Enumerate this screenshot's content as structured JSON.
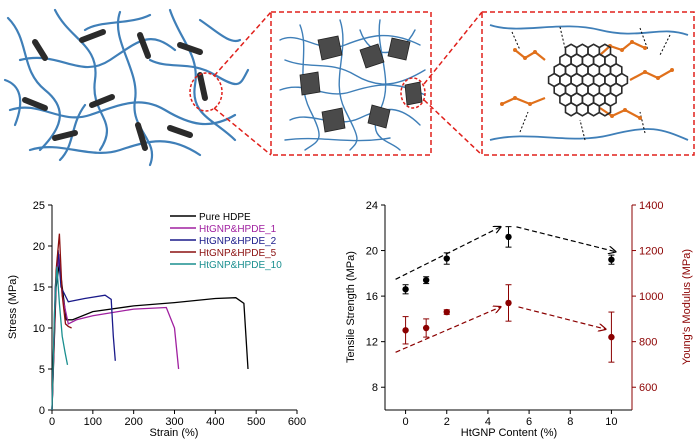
{
  "colors": {
    "polymer": "#3f7fb8",
    "sheet": "#2b2b2b",
    "zoom_box": "#e0201b",
    "chain": "#e0701b",
    "hdpe": "#000000",
    "htgnp1": "#a020a0",
    "htgnp2": "#1a1a8a",
    "htgnp5": "#8b1010",
    "htgnp10": "#1a8f8f",
    "modulus_axis": "#8b0000"
  },
  "schematic": {
    "panels": [
      "network-overview",
      "network-zoom",
      "graphene-sheet-zoom"
    ]
  },
  "chart_data": [
    {
      "type": "line",
      "xlabel": "Strain (%)",
      "ylabel": "Stress (MPa)",
      "xlim": [
        0,
        600
      ],
      "ylim": [
        0,
        25
      ],
      "xticks": [
        "0",
        "100",
        "200",
        "300",
        "400",
        "500",
        "600"
      ],
      "yticks": [
        "0",
        "5",
        "10",
        "15",
        "20",
        "25"
      ],
      "legend_position": "top-right",
      "series": [
        {
          "name": "Pure HDPE",
          "color": "#000000",
          "x": [
            0,
            10,
            18,
            25,
            35,
            50,
            100,
            200,
            300,
            400,
            450,
            470,
            480
          ],
          "y": [
            0,
            15,
            18,
            15,
            11,
            11,
            12,
            12.7,
            13.1,
            13.6,
            13.7,
            13,
            5
          ]
        },
        {
          "name": "HtGNP&HPDE_1",
          "color": "#a020a0",
          "x": [
            0,
            10,
            17,
            25,
            40,
            60,
            100,
            200,
            280,
            300,
            310
          ],
          "y": [
            0,
            16,
            19,
            14,
            10.5,
            11,
            11.5,
            12.3,
            12.5,
            10,
            5
          ]
        },
        {
          "name": "HtGNP&HPDE_2",
          "color": "#1a1a8a",
          "x": [
            0,
            8,
            15,
            22,
            40,
            80,
            130,
            145,
            150,
            155
          ],
          "y": [
            0,
            15,
            19.5,
            15,
            13.2,
            13.6,
            14,
            13.5,
            9,
            6
          ]
        },
        {
          "name": "HtGNP&HPDE_5",
          "color": "#8b1010",
          "x": [
            0,
            10,
            18,
            25,
            33,
            40,
            48
          ],
          "y": [
            0,
            17,
            21.5,
            14,
            10.5,
            10.2,
            10
          ]
        },
        {
          "name": "HtGNP&HPDE_10",
          "color": "#1a8f8f",
          "x": [
            0,
            6,
            12,
            18,
            25,
            32,
            38
          ],
          "y": [
            0,
            12,
            17.5,
            13,
            9,
            7,
            5.5
          ]
        }
      ]
    },
    {
      "type": "scatter",
      "xlabel": "HtGNP Content (%)",
      "ylabel": "Tensile Strength (MPa)",
      "y2label": "Young's Modulus (MPa)",
      "xlim": [
        -1,
        11
      ],
      "ylim": [
        6,
        24
      ],
      "y2lim": [
        500,
        1400
      ],
      "xticks": [
        "0",
        "2",
        "4",
        "6",
        "8",
        "10"
      ],
      "yticks": [
        "8",
        "12",
        "16",
        "20",
        "24"
      ],
      "y2ticks": [
        "600",
        "800",
        "1000",
        "1200",
        "1400"
      ],
      "series": [
        {
          "axis": "left",
          "color": "#000000",
          "x": [
            0,
            1,
            2,
            5,
            10
          ],
          "y": [
            16.6,
            17.4,
            19.3,
            21.2,
            19.2
          ],
          "err": [
            0.4,
            0.3,
            0.5,
            0.9,
            0.4
          ]
        },
        {
          "axis": "right",
          "color": "#8b0000",
          "x": [
            0,
            1,
            2,
            5,
            10
          ],
          "y": [
            850,
            860,
            930,
            970,
            820
          ],
          "err": [
            60,
            40,
            10,
            80,
            110
          ]
        }
      ]
    }
  ]
}
